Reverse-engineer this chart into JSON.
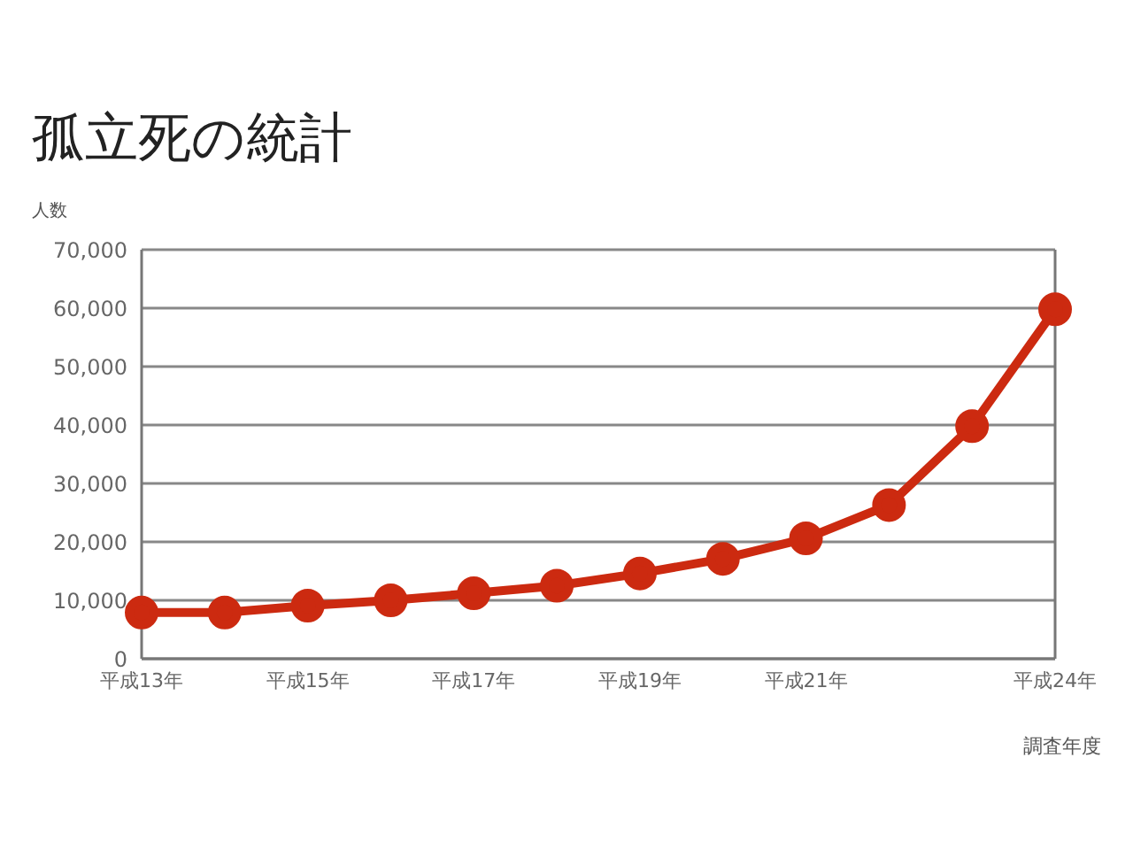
{
  "chart_data": {
    "type": "line",
    "title": "孤立死の統計",
    "ylabel": "人数",
    "xlabel": "調査年度",
    "categories": [
      "平成13年",
      null,
      "平成15年",
      null,
      "平成17年",
      null,
      "平成19年",
      null,
      "平成21年",
      null,
      null,
      "平成24年"
    ],
    "series": [
      {
        "color": "#cc2a10",
        "values": [
          7900,
          7900,
          9100,
          10000,
          11200,
          12500,
          14600,
          17100,
          20600,
          26300,
          39800,
          59800
        ]
      }
    ],
    "ylim": [
      0,
      70000
    ],
    "yticks": [
      0,
      {
        "value": 10000,
        "label": "10,000"
      },
      {
        "value": 20000,
        "label": "20,000"
      },
      {
        "value": 30000,
        "label": "30,000"
      },
      {
        "value": 40000,
        "label": "40,000"
      },
      {
        "value": 50000,
        "label": "50,000"
      },
      {
        "value": 60000,
        "label": "60,000"
      },
      {
        "value": 70000,
        "label": "70,000"
      }
    ],
    "grid": "y",
    "marker": "circle",
    "line_style": "solid"
  }
}
